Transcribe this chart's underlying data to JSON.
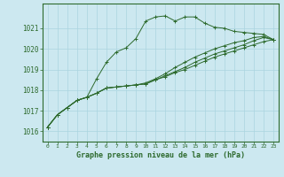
{
  "title": "Graphe pression niveau de la mer (hPa)",
  "bg_color": "#cce8f0",
  "grid_color": "#aad4e0",
  "line_color": "#2d6a2d",
  "axis_color": "#2d6a2d",
  "xlim": [
    -0.5,
    23.5
  ],
  "ylim": [
    1015.5,
    1022.2
  ],
  "yticks": [
    1016,
    1017,
    1018,
    1019,
    1020,
    1021
  ],
  "xticks": [
    0,
    1,
    2,
    3,
    4,
    5,
    6,
    7,
    8,
    9,
    10,
    11,
    12,
    13,
    14,
    15,
    16,
    17,
    18,
    19,
    20,
    21,
    22,
    23
  ],
  "series": [
    [
      1016.2,
      1016.8,
      1017.15,
      1017.5,
      1017.65,
      1018.55,
      1019.35,
      1019.85,
      1020.05,
      1020.5,
      1021.35,
      1021.55,
      1021.6,
      1021.35,
      1021.55,
      1021.55,
      1021.25,
      1021.05,
      1021.0,
      1020.85,
      1020.8,
      1020.75,
      1020.7,
      1020.45
    ],
    [
      1016.2,
      1016.8,
      1017.15,
      1017.5,
      1017.65,
      1017.85,
      1018.1,
      1018.15,
      1018.2,
      1018.25,
      1018.35,
      1018.55,
      1018.8,
      1019.1,
      1019.35,
      1019.6,
      1019.8,
      1020.0,
      1020.15,
      1020.3,
      1020.4,
      1020.55,
      1020.6,
      1020.45
    ],
    [
      1016.2,
      1016.8,
      1017.15,
      1017.5,
      1017.65,
      1017.85,
      1018.1,
      1018.15,
      1018.2,
      1018.25,
      1018.3,
      1018.5,
      1018.7,
      1018.9,
      1019.1,
      1019.35,
      1019.55,
      1019.75,
      1019.9,
      1020.05,
      1020.2,
      1020.4,
      1020.55,
      1020.45
    ],
    [
      1016.2,
      1016.8,
      1017.15,
      1017.5,
      1017.65,
      1017.85,
      1018.1,
      1018.15,
      1018.2,
      1018.25,
      1018.3,
      1018.5,
      1018.65,
      1018.85,
      1019.0,
      1019.2,
      1019.4,
      1019.6,
      1019.75,
      1019.9,
      1020.05,
      1020.2,
      1020.35,
      1020.45
    ]
  ]
}
